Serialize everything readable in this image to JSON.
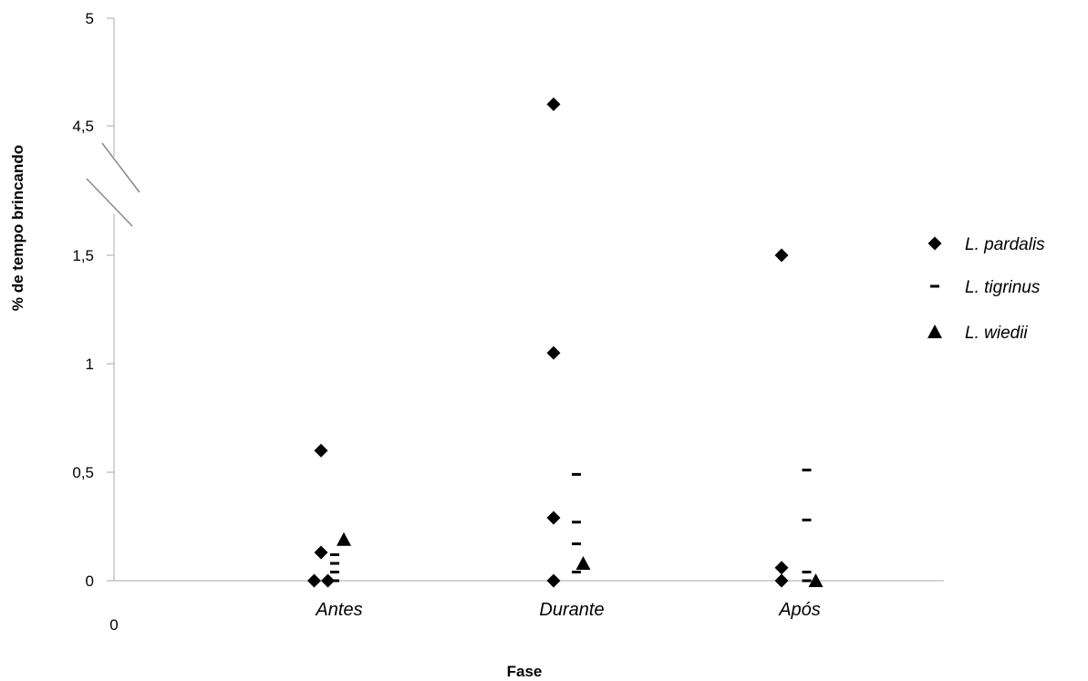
{
  "chart_data": {
    "type": "scatter",
    "ylabel": "% de tempo brincando",
    "xlabel": "Fase",
    "x_origin_label": "0",
    "categories": [
      "Antes",
      "Durante",
      "Após"
    ],
    "y_ticks": [
      "0",
      "0,5",
      "1",
      "1,5",
      "4,5",
      "5"
    ],
    "y_axis_break": {
      "between": [
        1.5,
        4.5
      ]
    },
    "series": [
      {
        "name": "L. pardalis",
        "marker": "diamond",
        "points": [
          {
            "category": "Antes",
            "offset": -0.08,
            "y": 0.6
          },
          {
            "category": "Antes",
            "offset": -0.08,
            "y": 0.13
          },
          {
            "category": "Antes",
            "offset": -0.11,
            "y": 0
          },
          {
            "category": "Antes",
            "offset": -0.05,
            "y": 0
          },
          {
            "category": "Durante",
            "offset": -0.08,
            "y": 4.6
          },
          {
            "category": "Durante",
            "offset": -0.08,
            "y": 1.05
          },
          {
            "category": "Durante",
            "offset": -0.08,
            "y": 0.29
          },
          {
            "category": "Durante",
            "offset": -0.08,
            "y": 0
          },
          {
            "category": "Após",
            "offset": -0.08,
            "y": 1.5
          },
          {
            "category": "Após",
            "offset": -0.08,
            "y": 0.06
          },
          {
            "category": "Após",
            "offset": -0.08,
            "y": 0
          }
        ]
      },
      {
        "name": "L. tigrinus",
        "marker": "dash",
        "points": [
          {
            "category": "Antes",
            "offset": -0.02,
            "y": 0.12
          },
          {
            "category": "Antes",
            "offset": -0.02,
            "y": 0.08
          },
          {
            "category": "Antes",
            "offset": -0.02,
            "y": 0.04
          },
          {
            "category": "Antes",
            "offset": -0.02,
            "y": 0
          },
          {
            "category": "Durante",
            "offset": 0.02,
            "y": 0.49
          },
          {
            "category": "Durante",
            "offset": 0.02,
            "y": 0.27
          },
          {
            "category": "Durante",
            "offset": 0.02,
            "y": 0.17
          },
          {
            "category": "Durante",
            "offset": 0.02,
            "y": 0.04
          },
          {
            "category": "Após",
            "offset": 0.03,
            "y": 0.51
          },
          {
            "category": "Após",
            "offset": 0.03,
            "y": 0.28
          },
          {
            "category": "Após",
            "offset": 0.03,
            "y": 0.04
          },
          {
            "category": "Após",
            "offset": 0.03,
            "y": 0
          }
        ]
      },
      {
        "name": "L. wiedii",
        "marker": "triangle",
        "points": [
          {
            "category": "Antes",
            "offset": 0.02,
            "y": 0.19
          },
          {
            "category": "Durante",
            "offset": 0.05,
            "y": 0.08
          },
          {
            "category": "Após",
            "offset": 0.07,
            "y": 0
          }
        ]
      }
    ],
    "legend_position": "right",
    "grid": false
  }
}
